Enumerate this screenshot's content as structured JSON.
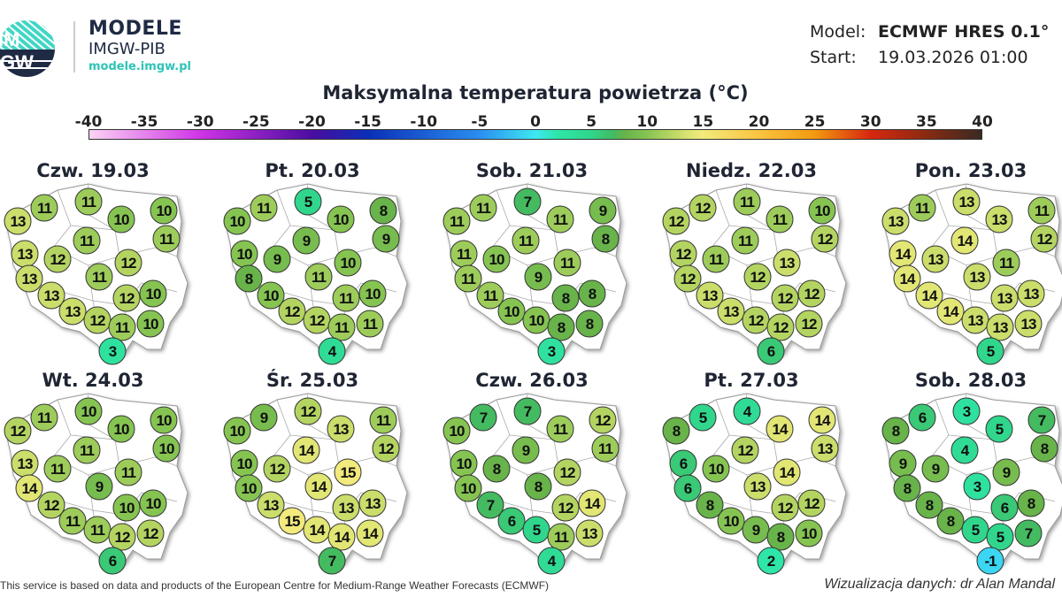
{
  "brand": {
    "title": "MODELE",
    "subtitle": "IMGW-PIB",
    "url": "modele.imgw.pl",
    "logo_text": "IMGW"
  },
  "meta": {
    "model_label": "Model:",
    "model_value": "ECMWF HRES 0.1°",
    "start_label": "Start:",
    "start_value": "19.03.2026 01:00"
  },
  "title": "Maksymalna temperatura powietrza (°C)",
  "colorbar": {
    "ticks": [
      "-40",
      "-35",
      "-30",
      "-25",
      "-20",
      "-15",
      "-10",
      "-5",
      "0",
      "5",
      "10",
      "15",
      "20",
      "25",
      "30",
      "35",
      "40"
    ],
    "range": [
      -40,
      40
    ],
    "stops": [
      {
        "v": -40,
        "c": "#fbd3f3"
      },
      {
        "v": -30,
        "c": "#cf33e6"
      },
      {
        "v": -20,
        "c": "#4a0da0"
      },
      {
        "v": -15,
        "c": "#0a2fb8"
      },
      {
        "v": -5,
        "c": "#2a8ef0"
      },
      {
        "v": 0,
        "c": "#3ee8f2"
      },
      {
        "v": 2,
        "c": "#2ee6a8"
      },
      {
        "v": 5,
        "c": "#30d68c"
      },
      {
        "v": 7,
        "c": "#44bb60"
      },
      {
        "v": 8,
        "c": "#68b34a"
      },
      {
        "v": 10,
        "c": "#86c452"
      },
      {
        "v": 12,
        "c": "#b4d461"
      },
      {
        "v": 14,
        "c": "#e2e674"
      },
      {
        "v": 15,
        "c": "#f2ea7c"
      },
      {
        "v": 20,
        "c": "#f9c440"
      },
      {
        "v": 25,
        "c": "#f39a10"
      },
      {
        "v": 30,
        "c": "#d8280f"
      },
      {
        "v": 35,
        "c": "#8a2a12"
      },
      {
        "v": 40,
        "c": "#3a2a22"
      }
    ]
  },
  "days": [
    {
      "label": "Czw. 19.03",
      "values": [
        11,
        11,
        13,
        10,
        10,
        11,
        11,
        13,
        12,
        12,
        13,
        11,
        12,
        10,
        13,
        13,
        12,
        11,
        10,
        3
      ]
    },
    {
      "label": "Pt. 20.03",
      "values": [
        11,
        5,
        10,
        10,
        8,
        9,
        9,
        10,
        9,
        10,
        8,
        11,
        11,
        10,
        10,
        12,
        12,
        11,
        11,
        4
      ]
    },
    {
      "label": "Sob. 21.03",
      "values": [
        11,
        7,
        11,
        11,
        9,
        11,
        8,
        11,
        10,
        11,
        11,
        9,
        8,
        8,
        11,
        10,
        10,
        8,
        8,
        3
      ]
    },
    {
      "label": "Niedz. 22.03",
      "values": [
        12,
        11,
        12,
        11,
        10,
        11,
        12,
        12,
        11,
        13,
        12,
        12,
        12,
        12,
        13,
        13,
        12,
        12,
        12,
        6
      ]
    },
    {
      "label": "Pon. 23.03",
      "values": [
        11,
        13,
        13,
        13,
        11,
        14,
        12,
        14,
        13,
        11,
        14,
        13,
        13,
        13,
        14,
        14,
        13,
        13,
        13,
        5
      ]
    },
    {
      "label": "Wt. 24.03",
      "values": [
        11,
        10,
        12,
        10,
        10,
        11,
        10,
        13,
        11,
        11,
        14,
        9,
        10,
        10,
        12,
        11,
        11,
        12,
        12,
        6
      ]
    },
    {
      "label": "Śr. 25.03",
      "values": [
        9,
        12,
        10,
        13,
        11,
        14,
        12,
        10,
        12,
        15,
        10,
        14,
        13,
        13,
        13,
        15,
        14,
        14,
        14,
        7
      ]
    },
    {
      "label": "Czw. 26.03",
      "values": [
        7,
        7,
        10,
        11,
        12,
        9,
        11,
        10,
        8,
        12,
        10,
        8,
        12,
        14,
        7,
        6,
        5,
        11,
        13,
        4
      ]
    },
    {
      "label": "Pt. 27.03",
      "values": [
        5,
        4,
        8,
        14,
        14,
        12,
        13,
        6,
        10,
        14,
        6,
        13,
        12,
        12,
        8,
        10,
        9,
        8,
        10,
        2
      ]
    },
    {
      "label": "Sob. 28.03",
      "values": [
        6,
        3,
        8,
        5,
        7,
        4,
        8,
        9,
        9,
        9,
        8,
        3,
        6,
        8,
        8,
        8,
        5,
        5,
        7,
        -1
      ]
    }
  ],
  "footer": {
    "left": "This service is based on data and products of the European Centre for Medium-Range Weather Forecasts (ECMWF)",
    "right": "Wizualizacja danych: dr Alan Mandal"
  }
}
